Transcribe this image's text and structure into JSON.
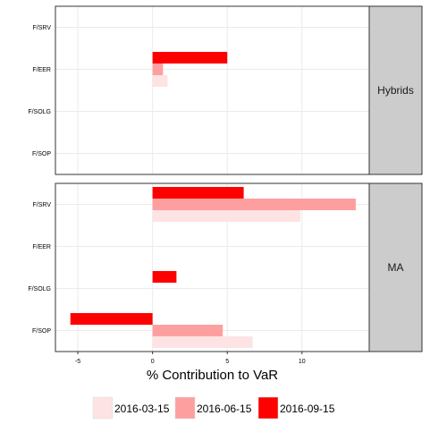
{
  "chart_data": {
    "type": "bar",
    "orientation": "horizontal",
    "xlabel": "% Contribution to VaR",
    "xlim": [
      -6.5,
      14.5
    ],
    "xticks": [
      -5,
      0,
      5,
      10
    ],
    "xtick_labels": [
      "-5",
      "0",
      "5",
      "10"
    ],
    "grid": true,
    "legend_position": "bottom",
    "legend_entries": [
      "2016-03-15",
      "2016-06-15",
      "2016-09-15"
    ],
    "colors": {
      "2016-03-15": "#fde3e3",
      "2016-06-15": "#fe9f9f",
      "2016-09-15": "#ff0000",
      "strip_bg": "#cccccc",
      "grid": "#ebebeb",
      "border": "#333333"
    },
    "categories": [
      "F/SRV",
      "F/EER",
      "F/SOLG",
      "F/SOP"
    ],
    "panels": [
      {
        "label": "Hybrids",
        "series": [
          {
            "name": "2016-03-15",
            "values": [
              0,
              1.0,
              0,
              0
            ]
          },
          {
            "name": "2016-06-15",
            "values": [
              0,
              0.7,
              0,
              0
            ]
          },
          {
            "name": "2016-09-15",
            "values": [
              0,
              5.0,
              0,
              0
            ]
          }
        ]
      },
      {
        "label": "MA",
        "series": [
          {
            "name": "2016-03-15",
            "values": [
              9.9,
              0,
              0,
              6.7
            ]
          },
          {
            "name": "2016-06-15",
            "values": [
              13.6,
              0,
              0,
              4.7
            ]
          },
          {
            "name": "2016-09-15",
            "values": [
              6.1,
              0,
              1.6,
              -5.5
            ]
          }
        ]
      }
    ]
  }
}
